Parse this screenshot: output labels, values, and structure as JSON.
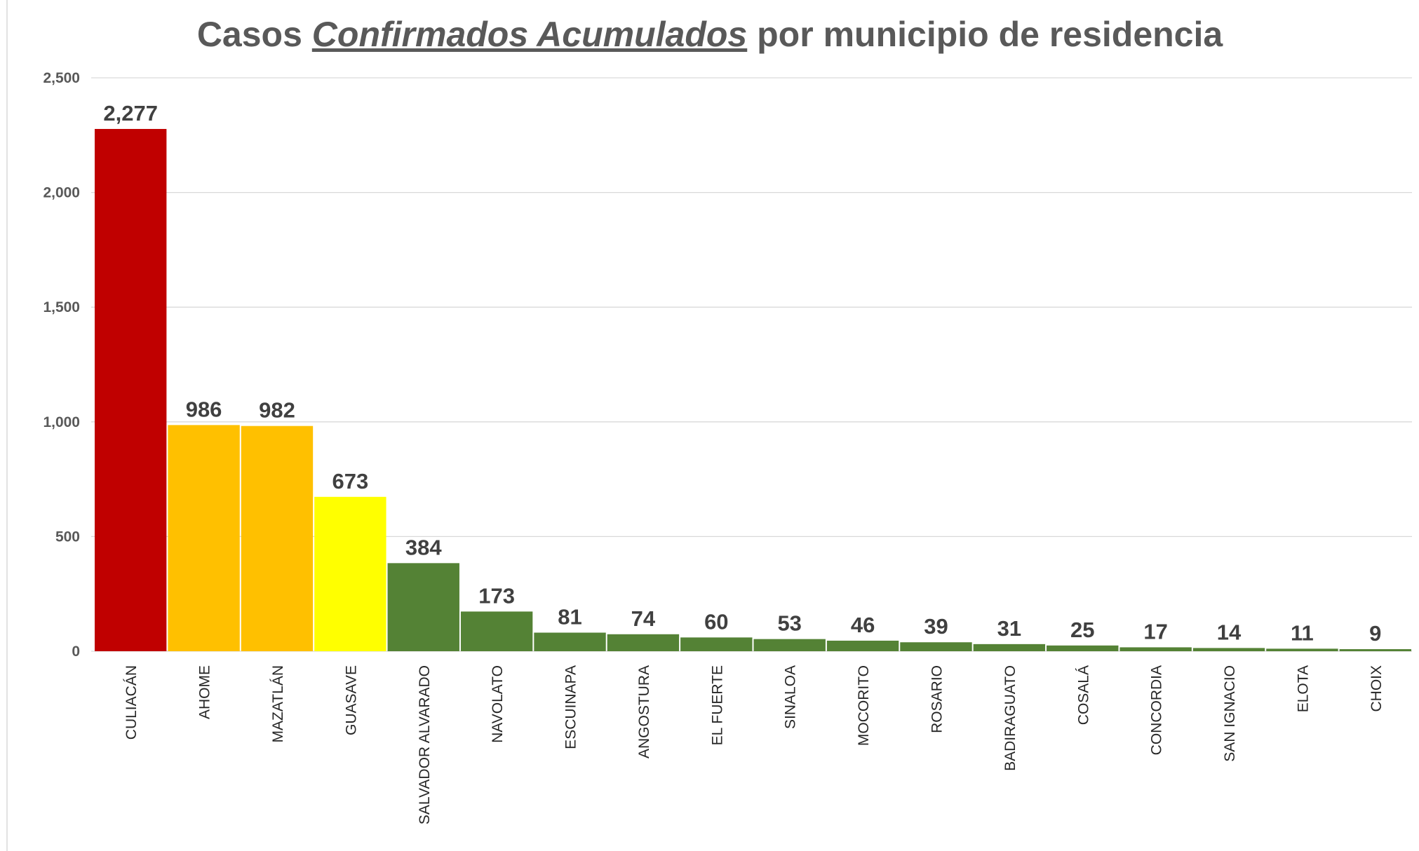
{
  "chart_data": {
    "type": "bar",
    "title": [
      "Casos",
      "Confirmados Acumulados",
      "por municipio de residencia"
    ],
    "categories": [
      "CULIACÁN",
      "AHOME",
      "MAZATLÁN",
      "GUASAVE",
      "SALVADOR ALVARADO",
      "NAVOLATO",
      "ESCUINAPA",
      "ANGOSTURA",
      "EL FUERTE",
      "SINALOA",
      "MOCORITO",
      "ROSARIO",
      "BADIRAGUATO",
      "COSALÁ",
      "CONCORDIA",
      "SAN IGNACIO",
      "ELOTA",
      "CHOIX"
    ],
    "values": [
      2277,
      986,
      982,
      673,
      384,
      173,
      81,
      74,
      60,
      53,
      46,
      39,
      31,
      25,
      17,
      14,
      11,
      9
    ],
    "value_labels": [
      "2,277",
      "986",
      "982",
      "673",
      "384",
      "173",
      "81",
      "74",
      "60",
      "53",
      "46",
      "39",
      "31",
      "25",
      "17",
      "14",
      "11",
      "9"
    ],
    "colors": [
      "#c00000",
      "#ffc000",
      "#ffc000",
      "#ffff00",
      "#548235",
      "#548235",
      "#548235",
      "#548235",
      "#548235",
      "#548235",
      "#548235",
      "#548235",
      "#548235",
      "#548235",
      "#548235",
      "#548235",
      "#548235",
      "#548235"
    ],
    "ylim": [
      0,
      2500
    ],
    "yticks": [
      0,
      500,
      {
        "value": 1000,
        "label": "1,000"
      },
      {
        "value": 1500,
        "label": "1,500"
      },
      {
        "value": 2000,
        "label": "2,000"
      },
      {
        "value": 2500,
        "label": "2,500"
      }
    ],
    "grid": true
  }
}
